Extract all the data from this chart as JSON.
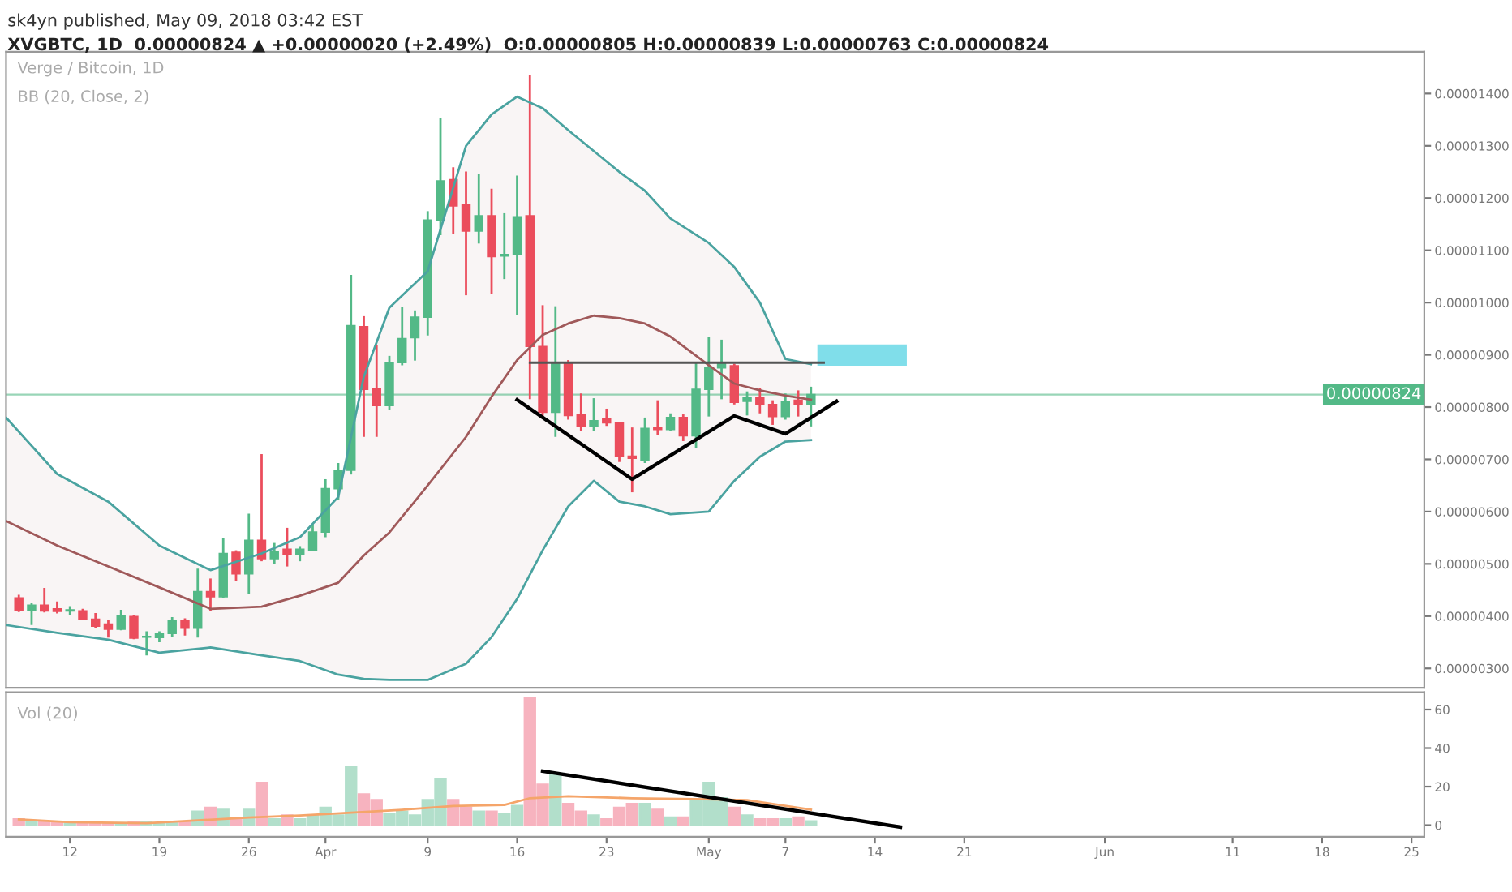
{
  "chart_data": [
    {
      "type": "candlestick",
      "title": "sk4yn published, May 09, 2018 03:42 EST",
      "subtitle": "XVGBTC, 1D  0.00000824 ▲ +0.00000020 (+2.49%)  O:0.00000805 H:0.00000839 L:0.00000763 C:0.00000824",
      "annotations": [
        "Verge / Bitcoin, 1D",
        "BB (20, Close, 2)"
      ],
      "x": [
        "2018-03-08",
        "2018-03-09",
        "2018-03-10",
        "2018-03-11",
        "2018-03-12",
        "2018-03-13",
        "2018-03-14",
        "2018-03-15",
        "2018-03-16",
        "2018-03-17",
        "2018-03-18",
        "2018-03-19",
        "2018-03-20",
        "2018-03-21",
        "2018-03-22",
        "2018-03-23",
        "2018-03-24",
        "2018-03-25",
        "2018-03-26",
        "2018-03-27",
        "2018-03-28",
        "2018-03-29",
        "2018-03-30",
        "2018-03-31",
        "2018-04-01",
        "2018-04-02",
        "2018-04-03",
        "2018-04-04",
        "2018-04-05",
        "2018-04-06",
        "2018-04-07",
        "2018-04-08",
        "2018-04-09",
        "2018-04-10",
        "2018-04-11",
        "2018-04-12",
        "2018-04-13",
        "2018-04-14",
        "2018-04-15",
        "2018-04-16",
        "2018-04-17",
        "2018-04-18",
        "2018-04-19",
        "2018-04-20",
        "2018-04-21",
        "2018-04-22",
        "2018-04-23",
        "2018-04-24",
        "2018-04-25",
        "2018-04-26",
        "2018-04-27",
        "2018-04-28",
        "2018-04-29",
        "2018-04-30",
        "2018-05-01",
        "2018-05-02",
        "2018-05-03",
        "2018-05-04",
        "2018-05-05",
        "2018-05-06",
        "2018-05-07",
        "2018-05-08",
        "2018-05-09"
      ],
      "ohlc": [
        [
          4.35e-06,
          4.41e-06,
          4.08e-06,
          4.12e-06
        ],
        [
          4.12e-06,
          4.25e-06,
          3.83e-06,
          4.21e-06
        ],
        [
          4.21e-06,
          4.54e-06,
          4.07e-06,
          4.1e-06
        ],
        [
          4.14e-06,
          4.28e-06,
          4.05e-06,
          4.09e-06
        ],
        [
          4.1e-06,
          4.19e-06,
          4.02e-06,
          4.12e-06
        ],
        [
          4.1e-06,
          4.14e-06,
          3.92e-06,
          3.94e-06
        ],
        [
          3.94e-06,
          4.06e-06,
          3.77e-06,
          3.81e-06
        ],
        [
          3.85e-06,
          3.92e-06,
          3.59e-06,
          3.75e-06
        ],
        [
          3.75e-06,
          4.12e-06,
          3.73e-06,
          4e-06
        ],
        [
          3.99e-06,
          4.02e-06,
          3.56e-06,
          3.58e-06
        ],
        [
          3.6e-06,
          3.71e-06,
          3.25e-06,
          3.61e-06
        ],
        [
          3.59e-06,
          3.71e-06,
          3.5e-06,
          3.67e-06
        ],
        [
          3.67e-06,
          3.98e-06,
          3.61e-06,
          3.92e-06
        ],
        [
          3.92e-06,
          3.96e-06,
          3.63e-06,
          3.77e-06
        ],
        [
          3.77e-06,
          4.91e-06,
          3.59e-06,
          4.47e-06
        ],
        [
          4.47e-06,
          4.72e-06,
          4.1e-06,
          4.37e-06
        ],
        [
          4.37e-06,
          5.49e-06,
          4.35e-06,
          5.2e-06
        ],
        [
          5.22e-06,
          5.26e-06,
          4.68e-06,
          4.81e-06
        ],
        [
          4.81e-06,
          5.96e-06,
          4.43e-06,
          5.45e-06
        ],
        [
          5.45e-06,
          7.1e-06,
          5.05e-06,
          5.1e-06
        ],
        [
          5.1e-06,
          5.4e-06,
          4.99e-06,
          5.24e-06
        ],
        [
          5.28e-06,
          5.69e-06,
          4.95e-06,
          5.18e-06
        ],
        [
          5.18e-06,
          5.34e-06,
          5.05e-06,
          5.28e-06
        ],
        [
          5.26e-06,
          5.76e-06,
          5.24e-06,
          5.61e-06
        ],
        [
          5.61e-06,
          6.62e-06,
          5.51e-06,
          6.44e-06
        ],
        [
          6.44e-06,
          6.93e-06,
          6.23e-06,
          6.79e-06
        ],
        [
          6.79e-06,
          1.053e-05,
          6.71e-06,
          9.56e-06
        ],
        [
          9.54e-06,
          9.74e-06,
          7.43e-06,
          8.34e-06
        ],
        [
          8.36e-06,
          9.19e-06,
          7.43e-06,
          8.03e-06
        ],
        [
          8.03e-06,
          8.98e-06,
          7.95e-06,
          8.85e-06
        ],
        [
          8.85e-06,
          9.91e-06,
          8.8e-06,
          9.31e-06
        ],
        [
          9.33e-06,
          9.85e-06,
          8.89e-06,
          9.72e-06
        ],
        [
          9.72e-06,
          1.175e-05,
          9.37e-06,
          1.158e-05
        ],
        [
          1.158e-05,
          1.354e-05,
          1.129e-05,
          1.233e-05
        ],
        [
          1.235e-05,
          1.259e-05,
          1.131e-05,
          1.185e-05
        ],
        [
          1.187e-05,
          1.251e-05,
          1.014e-05,
          1.137e-05
        ],
        [
          1.137e-05,
          1.247e-05,
          1.113e-05,
          1.166e-05
        ],
        [
          1.166e-05,
          1.218e-05,
          1.016e-05,
          1.088e-05
        ],
        [
          1.089e-05,
          1.171e-05,
          1.045e-05,
          1.092e-05
        ],
        [
          1.092e-05,
          1.243e-05,
          9.76e-06,
          1.164e-05
        ],
        [
          1.166e-05,
          1.435e-05,
          8.15e-06,
          9.16e-06
        ],
        [
          9.16e-06,
          9.95e-06,
          7.78e-06,
          7.9e-06
        ],
        [
          7.9e-06,
          9.93e-06,
          7.43e-06,
          8.83e-06
        ],
        [
          8.83e-06,
          8.9e-06,
          7.76e-06,
          7.84e-06
        ],
        [
          7.86e-06,
          8.26e-06,
          7.55e-06,
          7.64e-06
        ],
        [
          7.64e-06,
          8.17e-06,
          7.55e-06,
          7.74e-06
        ],
        [
          7.78e-06,
          7.97e-06,
          7.64e-06,
          7.7e-06
        ],
        [
          7.7e-06,
          7.72e-06,
          6.95e-06,
          7.06e-06
        ],
        [
          7.06e-06,
          7.61e-06,
          6.37e-06,
          7.02e-06
        ],
        [
          6.99e-06,
          7.8e-06,
          6.93e-06,
          7.59e-06
        ],
        [
          7.61e-06,
          8.13e-06,
          7.47e-06,
          7.57e-06
        ],
        [
          7.57e-06,
          7.88e-06,
          7.55e-06,
          7.8e-06
        ],
        [
          7.8e-06,
          7.86e-06,
          7.35e-06,
          7.45e-06
        ],
        [
          7.45e-06,
          8.85e-06,
          7.22e-06,
          8.34e-06
        ],
        [
          8.34e-06,
          9.35e-06,
          7.82e-06,
          8.75e-06
        ],
        [
          8.75e-06,
          9.29e-06,
          8.15e-06,
          8.83e-06
        ],
        [
          8.79e-06,
          8.83e-06,
          8.05e-06,
          8.09e-06
        ],
        [
          8.11e-06,
          8.3e-06,
          7.84e-06,
          8.19e-06
        ],
        [
          8.19e-06,
          8.36e-06,
          7.88e-06,
          8.05e-06
        ],
        [
          8.05e-06,
          8.13e-06,
          7.66e-06,
          7.82e-06
        ],
        [
          7.82e-06,
          8.26e-06,
          7.76e-06,
          8.11e-06
        ],
        [
          8.13e-06,
          8.32e-06,
          7.82e-06,
          8.05e-06
        ],
        [
          8.05e-06,
          8.39e-06,
          7.63e-06,
          8.24e-06
        ]
      ],
      "colors": [
        "#eb4d5c",
        "#53b987",
        "#eb4d5c",
        "#eb4d5c",
        "#53b987",
        "#eb4d5c",
        "#eb4d5c",
        "#eb4d5c",
        "#53b987",
        "#eb4d5c",
        "#53b987",
        "#53b987",
        "#53b987",
        "#eb4d5c",
        "#53b987",
        "#eb4d5c",
        "#53b987",
        "#eb4d5c",
        "#53b987",
        "#eb4d5c",
        "#53b987",
        "#eb4d5c",
        "#53b987",
        "#53b987",
        "#53b987",
        "#53b987",
        "#53b987",
        "#eb4d5c",
        "#eb4d5c",
        "#53b987",
        "#53b987",
        "#53b987",
        "#53b987",
        "#53b987",
        "#eb4d5c",
        "#eb4d5c",
        "#53b987",
        "#eb4d5c",
        "#53b987",
        "#53b987",
        "#eb4d5c",
        "#eb4d5c",
        "#53b987",
        "#eb4d5c",
        "#eb4d5c",
        "#53b987",
        "#eb4d5c",
        "#eb4d5c",
        "#eb4d5c",
        "#53b987",
        "#eb4d5c",
        "#53b987",
        "#eb4d5c",
        "#53b987",
        "#53b987",
        "#53b987",
        "#eb4d5c",
        "#53b987",
        "#eb4d5c",
        "#eb4d5c",
        "#53b987",
        "#eb4d5c",
        "#53b987"
      ],
      "series": [
        {
          "type": "line",
          "color": "#a0595a",
          "x": [
            "2018-03-07",
            "2018-03-11",
            "2018-03-15",
            "2018-03-19",
            "2018-03-23",
            "2018-03-27",
            "2018-03-30",
            "2018-04-02",
            "2018-04-04",
            "2018-04-06",
            "2018-04-09",
            "2018-04-12",
            "2018-04-14",
            "2018-04-16",
            "2018-04-18",
            "2018-04-20",
            "2018-04-22",
            "2018-04-24",
            "2018-04-26",
            "2018-04-28",
            "2018-05-01",
            "2018-05-03",
            "2018-05-05",
            "2018-05-07",
            "2018-05-09"
          ],
          "values": [
            5.82e-06,
            5.35e-06,
            4.95e-06,
            4.55e-06,
            4.14e-06,
            4.18e-06,
            4.39e-06,
            4.64e-06,
            5.16e-06,
            5.6e-06,
            6.5e-06,
            7.43e-06,
            8.2e-06,
            8.9e-06,
            9.38e-06,
            9.6e-06,
            9.75e-06,
            9.7e-06,
            9.6e-06,
            9.35e-06,
            8.8e-06,
            8.45e-06,
            8.32e-06,
            8.22e-06,
            8.14e-06
          ],
          "upper": [
            7.8e-06,
            6.72e-06,
            6.19e-06,
            5.35e-06,
            4.88e-06,
            5.2e-06,
            5.51e-06,
            6.28e-06,
            8.58e-06,
            9.9e-06,
            1.06e-05,
            1.3e-05,
            1.36e-05,
            1.394e-05,
            1.372e-05,
            1.33e-05,
            1.29e-05,
            1.25e-05,
            1.214e-05,
            1.161e-05,
            1.114e-05,
            1.068e-05,
            1e-05,
            8.92e-06,
            8.82e-06
          ],
          "lower": [
            3.83e-06,
            3.68e-06,
            3.55e-06,
            3.3e-06,
            3.4e-06,
            3.25e-06,
            3.14e-06,
            2.88e-06,
            2.8e-06,
            2.78e-06,
            2.78e-06,
            3.09e-06,
            3.6e-06,
            4.33e-06,
            5.26e-06,
            6.1e-06,
            6.59e-06,
            6.19e-06,
            6.1e-06,
            5.95e-06,
            6e-06,
            6.59e-06,
            7.05e-06,
            7.34e-06,
            7.37e-06
          ]
        },
        {
          "type": "line",
          "color": "#4aa3a0",
          "x": [
            "2018-03-07",
            "2018-03-11",
            "2018-03-15",
            "2018-03-19",
            "2018-03-23",
            "2018-03-27",
            "2018-03-30",
            "2018-04-02",
            "2018-04-04",
            "2018-04-06",
            "2018-04-09",
            "2018-04-12",
            "2018-04-14",
            "2018-04-16",
            "2018-04-18",
            "2018-04-20",
            "2018-04-22",
            "2018-04-24",
            "2018-04-26",
            "2018-04-28",
            "2018-05-01",
            "2018-05-03",
            "2018-05-05",
            "2018-05-07",
            "2018-05-09"
          ],
          "values": [
            7.8e-06,
            6.72e-06,
            6.19e-06,
            5.35e-06,
            4.88e-06,
            5.2e-06,
            5.51e-06,
            6.28e-06,
            8.58e-06,
            9.9e-06,
            1.06e-05,
            1.3e-05,
            1.36e-05,
            1.394e-05,
            1.372e-05,
            1.33e-05,
            1.29e-05,
            1.25e-05,
            1.214e-05,
            1.161e-05,
            1.114e-05,
            1.068e-05,
            1e-05,
            8.92e-06,
            8.82e-06
          ]
        },
        {
          "type": "line",
          "color": "#4aa3a0",
          "x": [
            "2018-03-07",
            "2018-03-11",
            "2018-03-15",
            "2018-03-19",
            "2018-03-23",
            "2018-03-27",
            "2018-03-30",
            "2018-04-02",
            "2018-04-04",
            "2018-04-06",
            "2018-04-09",
            "2018-04-12",
            "2018-04-14",
            "2018-04-16",
            "2018-04-18",
            "2018-04-20",
            "2018-04-22",
            "2018-04-24",
            "2018-04-26",
            "2018-04-28",
            "2018-05-01",
            "2018-05-03",
            "2018-05-05",
            "2018-05-07",
            "2018-05-09"
          ],
          "values": [
            3.83e-06,
            3.68e-06,
            3.55e-06,
            3.3e-06,
            3.4e-06,
            3.25e-06,
            3.14e-06,
            2.88e-06,
            2.8e-06,
            2.78e-06,
            2.78e-06,
            3.09e-06,
            3.6e-06,
            4.33e-06,
            5.26e-06,
            6.1e-06,
            6.59e-06,
            6.19e-06,
            6.1e-06,
            5.95e-06,
            6e-06,
            6.59e-06,
            7.05e-06,
            7.34e-06,
            7.37e-06
          ]
        },
        {
          "type": "line",
          "color": "#555555",
          "x": [
            "2018-04-17",
            "2018-05-10"
          ],
          "values": [
            8.85e-06,
            8.85e-06
          ]
        },
        {
          "type": "line",
          "color": "#000000",
          "x": [
            "2018-04-16",
            "2018-04-25",
            "2018-05-03",
            "2018-05-07",
            "2018-05-11"
          ],
          "values": [
            8.14e-06,
            6.62e-06,
            7.83e-06,
            7.49e-06,
            8.11e-06
          ]
        },
        {
          "type": "bar",
          "color": "#80deea",
          "x": [
            "2018-05-13"
          ],
          "values": [
            4.1e-07
          ],
          "base": [
            8.79e-06
          ]
        }
      ],
      "ref_lines": [
        {
          "axis": "y",
          "value": 8.24e-06,
          "label": "0.00000824",
          "color": "#53b987"
        }
      ],
      "xlim": [
        "2018-03-07",
        "2018-06-26"
      ],
      "ylim": [
        2.63e-06,
        1.48e-05
      ],
      "yticks": [
        {
          "value": 3e-06,
          "label": "0.00000300"
        },
        {
          "value": 4e-06,
          "label": "0.00000400"
        },
        {
          "value": 5e-06,
          "label": "0.00000500"
        },
        {
          "value": 6e-06,
          "label": "0.00000600"
        },
        {
          "value": 7e-06,
          "label": "0.00000700"
        },
        {
          "value": 8e-06,
          "label": "0.00000800"
        },
        {
          "value": 9e-06,
          "label": "0.00000900"
        },
        {
          "value": 1e-05,
          "label": "0.00001000"
        },
        {
          "value": 1.1e-05,
          "label": "0.00001100"
        },
        {
          "value": 1.2e-05,
          "label": "0.00001200"
        },
        {
          "value": 1.3e-05,
          "label": "0.00001300"
        },
        {
          "value": 1.4e-05,
          "label": "0.00001400"
        }
      ],
      "tick_labels": "y",
      "grid": false,
      "legend": false
    },
    {
      "type": "bar",
      "title": "Vol (20)",
      "x": [
        "2018-03-08",
        "2018-03-09",
        "2018-03-10",
        "2018-03-11",
        "2018-03-12",
        "2018-03-13",
        "2018-03-14",
        "2018-03-15",
        "2018-03-16",
        "2018-03-17",
        "2018-03-18",
        "2018-03-19",
        "2018-03-20",
        "2018-03-21",
        "2018-03-22",
        "2018-03-23",
        "2018-03-24",
        "2018-03-25",
        "2018-03-26",
        "2018-03-27",
        "2018-03-28",
        "2018-03-29",
        "2018-03-30",
        "2018-03-31",
        "2018-04-01",
        "2018-04-02",
        "2018-04-03",
        "2018-04-04",
        "2018-04-05",
        "2018-04-06",
        "2018-04-07",
        "2018-04-08",
        "2018-04-09",
        "2018-04-10",
        "2018-04-11",
        "2018-04-12",
        "2018-04-13",
        "2018-04-14",
        "2018-04-15",
        "2018-04-16",
        "2018-04-17",
        "2018-04-18",
        "2018-04-19",
        "2018-04-20",
        "2018-04-21",
        "2018-04-22",
        "2018-04-23",
        "2018-04-24",
        "2018-04-25",
        "2018-04-26",
        "2018-04-27",
        "2018-04-28",
        "2018-04-29",
        "2018-04-30",
        "2018-05-01",
        "2018-05-02",
        "2018-05-03",
        "2018-05-04",
        "2018-05-05",
        "2018-05-06",
        "2018-05-07",
        "2018-05-08",
        "2018-05-09"
      ],
      "values": [
        3,
        2,
        1.5,
        1.5,
        1,
        1,
        1,
        1,
        1,
        1.5,
        1.5,
        1,
        1.5,
        1.5,
        7,
        9,
        8,
        3,
        8,
        22,
        3,
        5,
        3,
        5,
        9,
        5,
        30,
        16,
        13,
        6,
        7,
        5,
        13,
        24,
        13,
        9,
        7,
        7,
        6,
        10,
        66,
        21,
        26,
        11,
        7,
        5,
        3,
        9,
        11,
        11,
        8,
        4,
        4,
        13,
        22,
        14,
        9,
        5,
        3,
        3,
        3,
        4,
        2
      ],
      "colors": [
        "#f7b3bf",
        "#b2dfcb",
        "#f7b3bf",
        "#f7b3bf",
        "#b2dfcb",
        "#f7b3bf",
        "#f7b3bf",
        "#f7b3bf",
        "#b2dfcb",
        "#f7b3bf",
        "#b2dfcb",
        "#b2dfcb",
        "#b2dfcb",
        "#f7b3bf",
        "#b2dfcb",
        "#f7b3bf",
        "#b2dfcb",
        "#f7b3bf",
        "#b2dfcb",
        "#f7b3bf",
        "#b2dfcb",
        "#f7b3bf",
        "#b2dfcb",
        "#b2dfcb",
        "#b2dfcb",
        "#b2dfcb",
        "#b2dfcb",
        "#f7b3bf",
        "#f7b3bf",
        "#b2dfcb",
        "#b2dfcb",
        "#b2dfcb",
        "#b2dfcb",
        "#b2dfcb",
        "#f7b3bf",
        "#f7b3bf",
        "#b2dfcb",
        "#f7b3bf",
        "#b2dfcb",
        "#b2dfcb",
        "#f7b3bf",
        "#f7b3bf",
        "#b2dfcb",
        "#f7b3bf",
        "#f7b3bf",
        "#b2dfcb",
        "#f7b3bf",
        "#f7b3bf",
        "#f7b3bf",
        "#b2dfcb",
        "#f7b3bf",
        "#b2dfcb",
        "#f7b3bf",
        "#b2dfcb",
        "#b2dfcb",
        "#b2dfcb",
        "#f7b3bf",
        "#b2dfcb",
        "#f7b3bf",
        "#f7b3bf",
        "#b2dfcb",
        "#f7b3bf",
        "#b2dfcb"
      ],
      "series": [
        {
          "type": "line",
          "color": "#f5a56a",
          "x": [
            "2018-03-08",
            "2018-03-12",
            "2018-03-18",
            "2018-03-22",
            "2018-03-26",
            "2018-03-30",
            "2018-04-03",
            "2018-04-07",
            "2018-04-11",
            "2018-04-15",
            "2018-04-17",
            "2018-04-20",
            "2018-04-25",
            "2018-04-30",
            "2018-05-04",
            "2018-05-06",
            "2018-05-09"
          ],
          "values": [
            3,
            1.5,
            1,
            2.5,
            4,
            5,
            6.5,
            8,
            10,
            10.5,
            14,
            15,
            14,
            13.5,
            13,
            11,
            8
          ]
        },
        {
          "type": "line",
          "color": "#000000",
          "x": [
            "2018-04-18",
            "2018-05-16"
          ],
          "values": [
            28,
            -1
          ]
        }
      ],
      "xlim": [
        "2018-03-07",
        "2018-06-26"
      ],
      "ylim": [
        -6,
        69
      ],
      "yticks": [
        0,
        20,
        40,
        60
      ],
      "xticks": [
        {
          "value": "2018-03-12",
          "label": "12"
        },
        {
          "value": "2018-03-19",
          "label": "19"
        },
        {
          "value": "2018-03-26",
          "label": "26"
        },
        {
          "value": "2018-04-01",
          "label": "Apr"
        },
        {
          "value": "2018-04-09",
          "label": "9"
        },
        {
          "value": "2018-04-16",
          "label": "16"
        },
        {
          "value": "2018-04-23",
          "label": "23"
        },
        {
          "value": "2018-05-01",
          "label": "May"
        },
        {
          "value": "2018-05-07",
          "label": "7"
        },
        {
          "value": "2018-05-14",
          "label": "14"
        },
        {
          "value": "2018-05-21",
          "label": "21"
        },
        {
          "value": "2018-06-01",
          "label": "Jun"
        },
        {
          "value": "2018-06-11",
          "label": "11"
        },
        {
          "value": "2018-06-18",
          "label": "18"
        },
        {
          "value": "2018-06-25",
          "label": "25"
        }
      ],
      "grid": false,
      "legend": false
    }
  ]
}
